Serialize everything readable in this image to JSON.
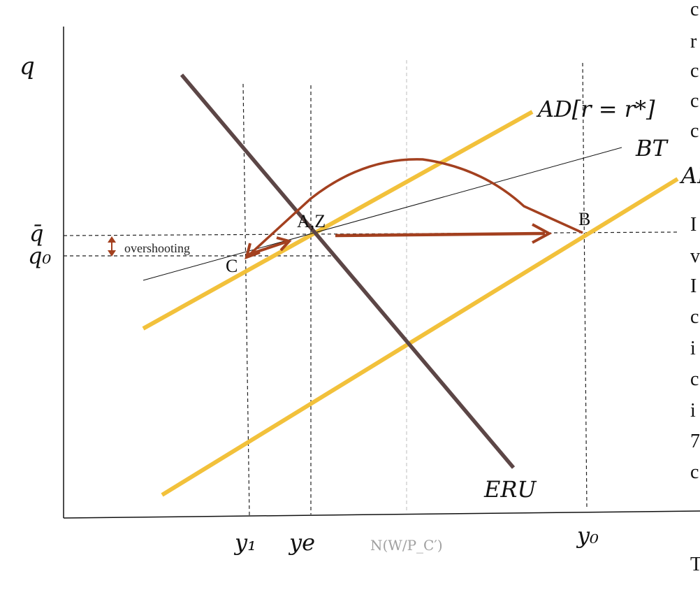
{
  "axes": {
    "y_label": "q"
  },
  "levels": {
    "q_bar": "q̄",
    "q0": "q₀"
  },
  "outputs": {
    "y1": "y₁",
    "ye": "ye",
    "n_wpc": "N(W/P_C′)",
    "y0": "y₀"
  },
  "curves": {
    "ad_rstar": "AD[r = r*]",
    "bt": "BT",
    "ad_lower": "AD",
    "eru": "ERU"
  },
  "points": {
    "az": "A,Z",
    "b": "B",
    "c": "C"
  },
  "annotations": {
    "overshooting": "overshooting"
  },
  "colors": {
    "ad_line": "#f2c13b",
    "eru_line": "#5c4646",
    "path": "#a3401f",
    "axis": "#111111",
    "dashed_guide": "#222222",
    "grey_guide": "#c7c7c7"
  },
  "right_margin_text": [
    "c",
    "r",
    "c",
    "c",
    "c",
    "I",
    "v",
    "I",
    "c",
    "i",
    "c",
    "i",
    "7",
    "c",
    "T"
  ]
}
